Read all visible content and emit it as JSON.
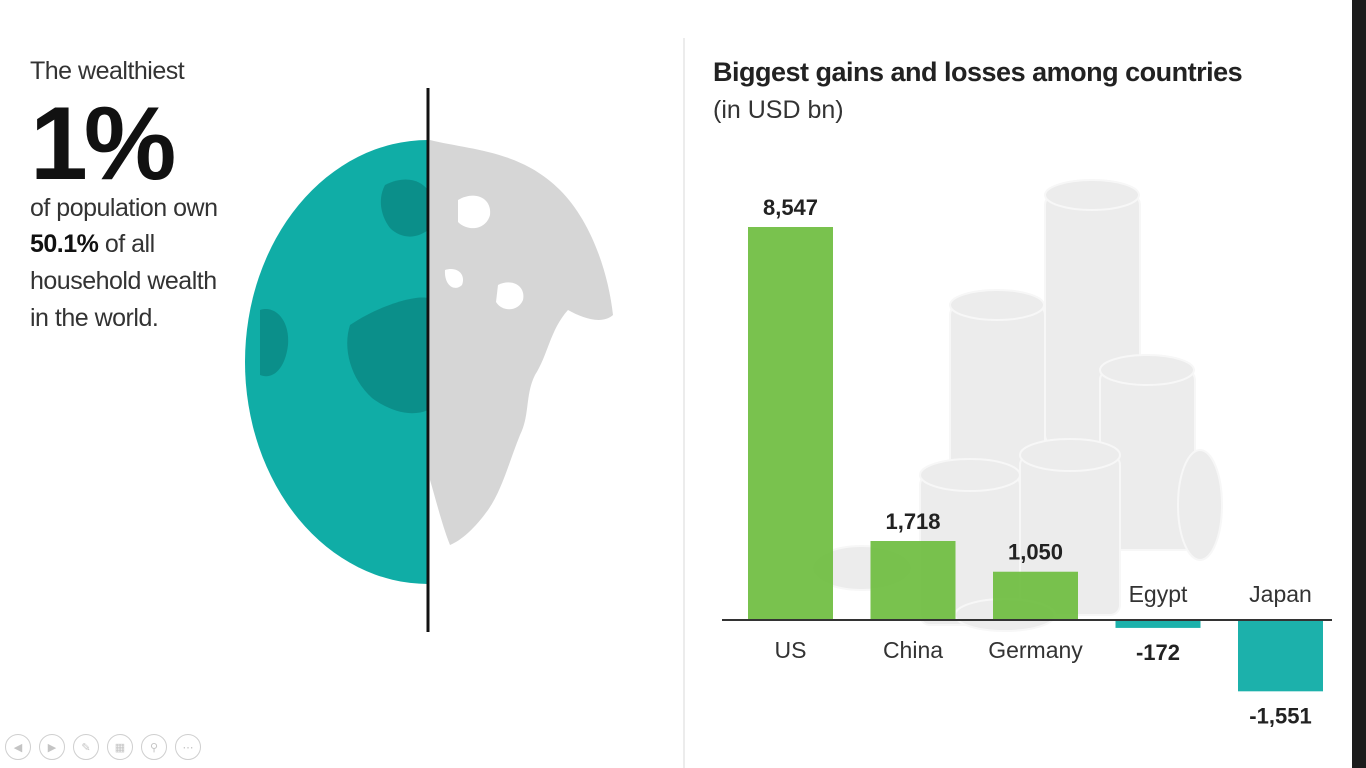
{
  "left_panel": {
    "line1": "The wealthiest",
    "big_percent": "1%",
    "line2": "of population own",
    "line3_bold": "50.1%",
    "line3_rest": " of all",
    "line4": "household wealth",
    "line5": "in the world."
  },
  "colors": {
    "teal": "#10ada6",
    "teal_dark": "#0b8f8a",
    "green": "#72bf44",
    "land_gray": "#d6d6d6",
    "coin_gray": "#ececec"
  },
  "chart_data": {
    "type": "bar",
    "title": "Biggest gains and losses among countries",
    "subtitle": "(in USD bn)",
    "categories": [
      "US",
      "China",
      "Germany",
      "Egypt",
      "Japan"
    ],
    "values": [
      8547,
      1718,
      1050,
      -172,
      -1551
    ],
    "value_labels": [
      "8,547",
      "1,718",
      "1,050",
      "-172",
      "-1,551"
    ],
    "positive_color": "#72bf44",
    "negative_color": "#10ada6",
    "grid": false,
    "legend": "none"
  },
  "controls": [
    "prev-icon",
    "next-icon",
    "pen-icon",
    "slides-icon",
    "zoom-icon",
    "more-icon"
  ]
}
